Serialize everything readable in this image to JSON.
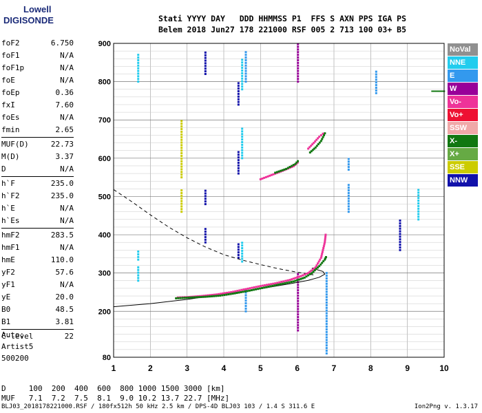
{
  "logo": {
    "line1": "Lowell",
    "line2": "DIGISONDE"
  },
  "header": {
    "line1": "Stati YYYY DAY   DDD HHMMSS P1  FFS S AXN PPS IGA PS",
    "line2": "Belem 2018 Jun27 178 221000 RSF 005 2 713 100 03+ B5"
  },
  "params_groups": [
    [
      [
        "foF2",
        "6.750"
      ],
      [
        "foF1",
        "N/A"
      ],
      [
        "foF1p",
        "N/A"
      ],
      [
        "foE",
        "N/A"
      ],
      [
        "foEp",
        "0.36"
      ],
      [
        "fxI",
        "7.60"
      ],
      [
        "foEs",
        "N/A"
      ],
      [
        "fmin",
        "2.65"
      ]
    ],
    [
      [
        "MUF(D)",
        "22.73"
      ],
      [
        "M(D)",
        "3.37"
      ],
      [
        "D",
        "N/A"
      ]
    ],
    [
      [
        "h`F",
        "235.0"
      ],
      [
        "h`F2",
        "235.0"
      ],
      [
        "h`E",
        "N/A"
      ],
      [
        "h`Es",
        "N/A"
      ]
    ],
    [
      [
        "hmF2",
        "283.5"
      ],
      [
        "hmF1",
        "N/A"
      ],
      [
        "hmE",
        "110.0"
      ],
      [
        "yF2",
        "57.6"
      ],
      [
        "yF1",
        "N/A"
      ],
      [
        "yE",
        "20.0"
      ],
      [
        "B0",
        "48.5"
      ],
      [
        "B1",
        "3.81"
      ]
    ],
    [
      [
        "C-level",
        "22"
      ]
    ]
  ],
  "artist": {
    "line1": "Auto:",
    "line2": "Artist5",
    "line3": "500200"
  },
  "muf_table": {
    "d_line": "D     100  200  400  600  800 1000 1500 3000 [km]",
    "muf_line": "MUF   7.1  7.2  7.5  8.1  9.0 10.2 13.7 22.7 [MHz]"
  },
  "footer": "BLJ03_2018178221000.RSF / 180fx512h 50 kHz 2.5 km / DPS-4D BLJ03 103 / 1.4 S 311.6 E",
  "version": "Ion2Png v. 1.3.17",
  "legend": [
    {
      "label": "NoVal",
      "color": "#909090"
    },
    {
      "label": "NNE",
      "color": "#22ccee"
    },
    {
      "label": "E",
      "color": "#3399ee"
    },
    {
      "label": "W",
      "color": "#990099"
    },
    {
      "label": "Vo-",
      "color": "#ee3399"
    },
    {
      "label": "Vo+",
      "color": "#ee1133"
    },
    {
      "label": "SSW",
      "color": "#f0a8a8"
    },
    {
      "label": "X-",
      "color": "#117711"
    },
    {
      "label": "X+",
      "color": "#66aa44"
    },
    {
      "label": "SSE",
      "color": "#cccc00"
    },
    {
      "label": "NNW",
      "color": "#1111aa"
    }
  ],
  "chart_data": {
    "type": "scatter",
    "x_range": [
      1,
      10
    ],
    "y_range": [
      80,
      900
    ],
    "x_ticks": [
      "1",
      "2",
      "3",
      "4",
      "5",
      "6",
      "7",
      "8",
      "9",
      "10"
    ],
    "y_ticks": [
      "80",
      "200",
      "300",
      "400",
      "500",
      "600",
      "700",
      "800",
      "900"
    ],
    "grid": true,
    "traces": [
      {
        "name": "O-trace",
        "color": "#ee3399",
        "points": [
          [
            2.75,
            236
          ],
          [
            3.0,
            237
          ],
          [
            3.4,
            240
          ],
          [
            3.8,
            244
          ],
          [
            4.2,
            250
          ],
          [
            4.6,
            258
          ],
          [
            5.0,
            266
          ],
          [
            5.4,
            273
          ],
          [
            5.8,
            282
          ],
          [
            6.1,
            292
          ],
          [
            6.3,
            300
          ],
          [
            6.5,
            315
          ],
          [
            6.65,
            340
          ],
          [
            6.75,
            380
          ],
          [
            6.78,
            405
          ]
        ]
      },
      {
        "name": "X-trace",
        "color": "#117711",
        "points": [
          [
            2.7,
            234
          ],
          [
            3.1,
            236
          ],
          [
            3.5,
            238
          ],
          [
            3.9,
            241
          ],
          [
            4.3,
            247
          ],
          [
            4.7,
            254
          ],
          [
            5.1,
            262
          ],
          [
            5.5,
            270
          ],
          [
            5.9,
            278
          ],
          [
            6.2,
            288
          ],
          [
            6.4,
            300
          ],
          [
            6.6,
            318
          ],
          [
            6.75,
            335
          ],
          [
            6.8,
            345
          ]
        ]
      },
      {
        "name": "O-trace-2",
        "color": "#ee3399",
        "points": [
          [
            5.0,
            545
          ],
          [
            5.3,
            556
          ],
          [
            5.6,
            567
          ],
          [
            5.9,
            579
          ],
          [
            6.05,
            592
          ]
        ]
      },
      {
        "name": "X-trace-2",
        "color": "#117711",
        "points": [
          [
            5.4,
            562
          ],
          [
            5.7,
            572
          ],
          [
            5.95,
            585
          ],
          [
            6.05,
            596
          ]
        ]
      },
      {
        "name": "O-trace-3",
        "color": "#ee3399",
        "points": [
          [
            6.3,
            625
          ],
          [
            6.45,
            640
          ],
          [
            6.6,
            656
          ],
          [
            6.75,
            668
          ]
        ]
      },
      {
        "name": "X-trace-3",
        "color": "#117711",
        "points": [
          [
            6.35,
            615
          ],
          [
            6.5,
            628
          ],
          [
            6.65,
            645
          ],
          [
            6.78,
            670
          ]
        ]
      }
    ],
    "profile_solid": [
      [
        1.0,
        212
      ],
      [
        2.0,
        220
      ],
      [
        3.0,
        231
      ],
      [
        4.0,
        245
      ],
      [
        5.0,
        259
      ],
      [
        5.8,
        272
      ],
      [
        6.3,
        281
      ],
      [
        6.6,
        289
      ],
      [
        6.75,
        297
      ],
      [
        6.7,
        304
      ],
      [
        6.4,
        313
      ]
    ],
    "profile_dashed": [
      [
        1.0,
        518
      ],
      [
        1.5,
        486
      ],
      [
        2.0,
        452
      ],
      [
        2.5,
        420
      ],
      [
        3.0,
        392
      ],
      [
        3.5,
        368
      ],
      [
        4.0,
        348
      ],
      [
        4.5,
        334
      ],
      [
        5.0,
        322
      ],
      [
        5.5,
        311
      ],
      [
        6.0,
        302
      ],
      [
        6.3,
        298
      ],
      [
        6.5,
        294
      ]
    ],
    "vertical_bands": [
      {
        "x": 1.67,
        "color": "#22ccee",
        "ranges": [
          [
            280,
            320
          ],
          [
            335,
            360
          ],
          [
            800,
            870
          ]
        ]
      },
      {
        "x": 2.85,
        "color": "#cccc00",
        "ranges": [
          [
            550,
            700
          ],
          [
            460,
            520
          ]
        ]
      },
      {
        "x": 3.5,
        "color": "#1111aa",
        "ranges": [
          [
            820,
            880
          ],
          [
            480,
            520
          ],
          [
            380,
            420
          ]
        ]
      },
      {
        "x": 4.4,
        "color": "#1111aa",
        "ranges": [
          [
            740,
            800
          ],
          [
            560,
            620
          ],
          [
            340,
            380
          ]
        ]
      },
      {
        "x": 4.5,
        "color": "#22ccee",
        "ranges": [
          [
            600,
            680
          ],
          [
            780,
            860
          ],
          [
            330,
            380
          ]
        ]
      },
      {
        "x": 4.6,
        "color": "#3399ee",
        "ranges": [
          [
            800,
            880
          ],
          [
            200,
            260
          ]
        ]
      },
      {
        "x": 6.02,
        "color": "#990099",
        "ranges": [
          [
            150,
            300
          ],
          [
            800,
            900
          ]
        ]
      },
      {
        "x": 6.8,
        "color": "#3399ee",
        "ranges": [
          [
            90,
            300
          ]
        ]
      },
      {
        "x": 7.4,
        "color": "#3399ee",
        "ranges": [
          [
            460,
            530
          ],
          [
            570,
            600
          ]
        ]
      },
      {
        "x": 8.15,
        "color": "#3399ee",
        "ranges": [
          [
            770,
            830
          ]
        ]
      },
      {
        "x": 8.8,
        "color": "#1111aa",
        "ranges": [
          [
            360,
            440
          ]
        ]
      },
      {
        "x": 9.3,
        "color": "#22ccee",
        "ranges": [
          [
            440,
            520
          ]
        ]
      }
    ],
    "right_dashes": {
      "color": "#117711",
      "y": 775,
      "x_from": 9.65,
      "x_to": 10.0
    }
  }
}
